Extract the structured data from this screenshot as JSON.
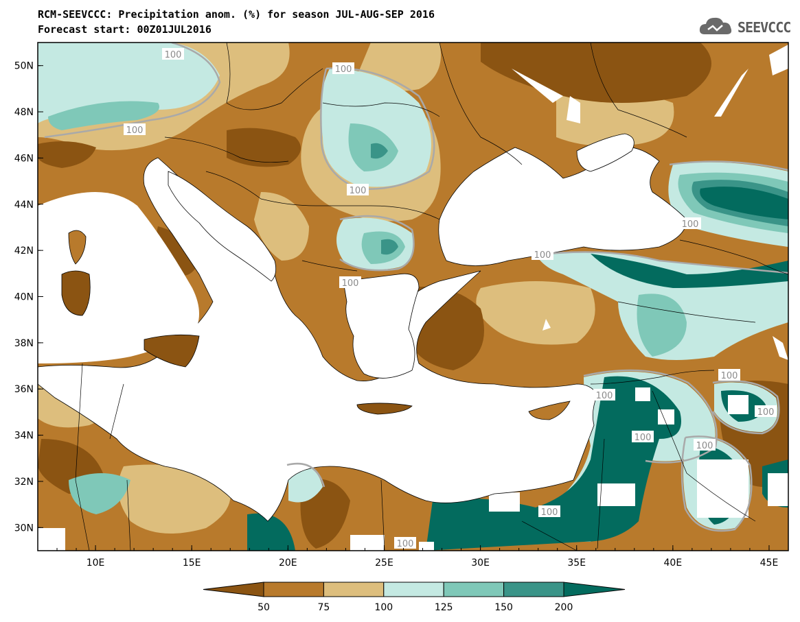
{
  "header": {
    "title": "RCM-SEEVCCC: Precipitation anom. (%) for season JUL-AUG-SEP 2016",
    "subtitle": "Forecast start: 00Z01JUL2016"
  },
  "logo": {
    "text": "SEEVCCC",
    "icon": "cloud-icon"
  },
  "map": {
    "lat_range": [
      29,
      51
    ],
    "lon_range": [
      7,
      46
    ],
    "lat_labels": [
      "50N",
      "48N",
      "46N",
      "44N",
      "42N",
      "40N",
      "38N",
      "36N",
      "34N",
      "32N",
      "30N"
    ],
    "lon_labels": [
      "10E",
      "15E",
      "20E",
      "25E",
      "30E",
      "35E",
      "40E",
      "45E"
    ],
    "contour_labels": [
      "100",
      "100",
      "100",
      "100",
      "100",
      "100",
      "100",
      "100",
      "100",
      "100",
      "100",
      "100",
      "100",
      "100"
    ]
  },
  "legend": {
    "levels": [
      "50",
      "75",
      "100",
      "125",
      "150",
      "200"
    ],
    "colors": [
      "#8b5412",
      "#b87a2c",
      "#ddbe7d",
      "#c4e9e2",
      "#7fc8b8",
      "#3a9488",
      "#036b5e"
    ]
  }
}
